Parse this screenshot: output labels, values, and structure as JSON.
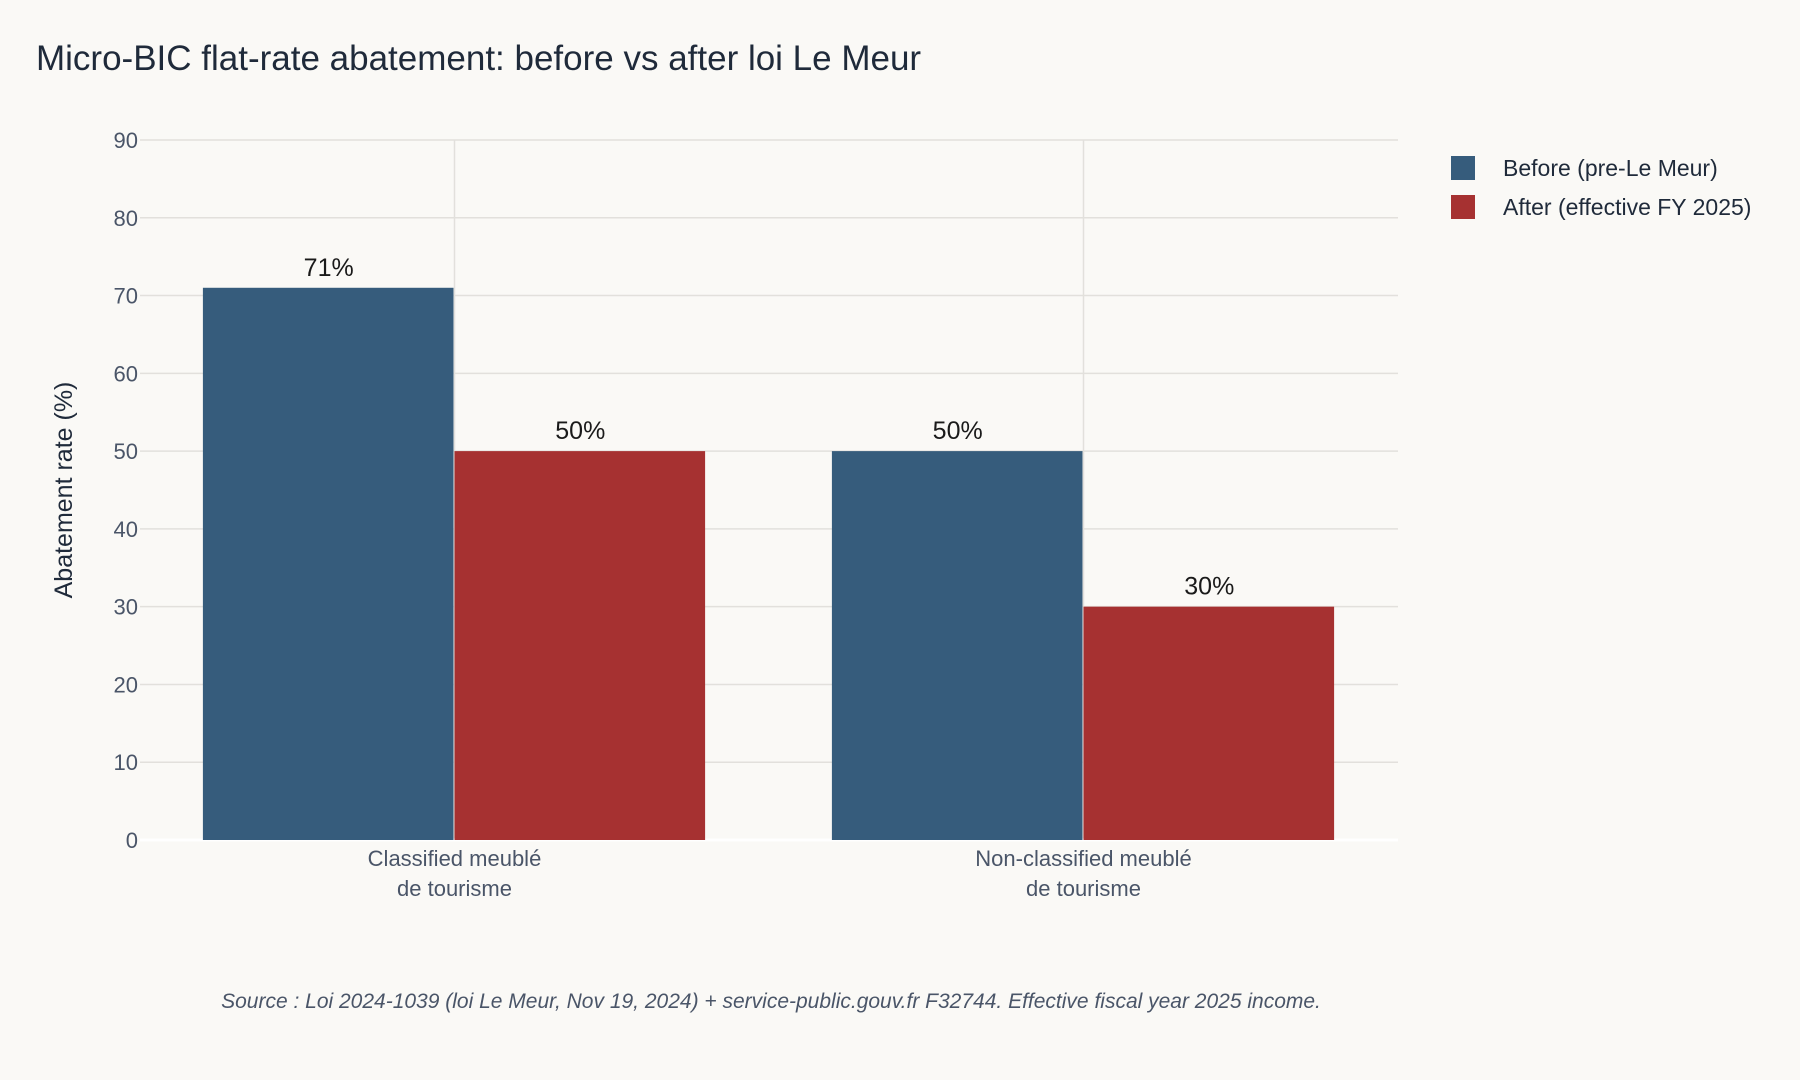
{
  "chart_data": {
    "type": "bar",
    "title": "Micro-BIC flat-rate abatement: before vs after loi Le Meur",
    "ylabel": "Abatement rate (%)",
    "xlabel": "",
    "ylim": [
      0,
      90
    ],
    "yticks": [
      0,
      10,
      20,
      30,
      40,
      50,
      60,
      70,
      80,
      90
    ],
    "categories": [
      [
        "Classified meublé",
        "de tourisme"
      ],
      [
        "Non-classified meublé",
        "de tourisme"
      ]
    ],
    "series": [
      {
        "name": "Before (pre-Le Meur)",
        "values": [
          71,
          50
        ],
        "labels": [
          "71%",
          "50%"
        ],
        "color": "#365c7c"
      },
      {
        "name": "After (effective FY 2025)",
        "values": [
          50,
          30
        ],
        "labels": [
          "50%",
          "30%"
        ],
        "color": "#a63131"
      }
    ],
    "grid": true,
    "legend_position": "top-right",
    "source_note": "Source : Loi 2024-1039 (loi Le Meur, Nov 19, 2024) + service-public.gouv.fr F32744. Effective fiscal year 2025 income."
  }
}
